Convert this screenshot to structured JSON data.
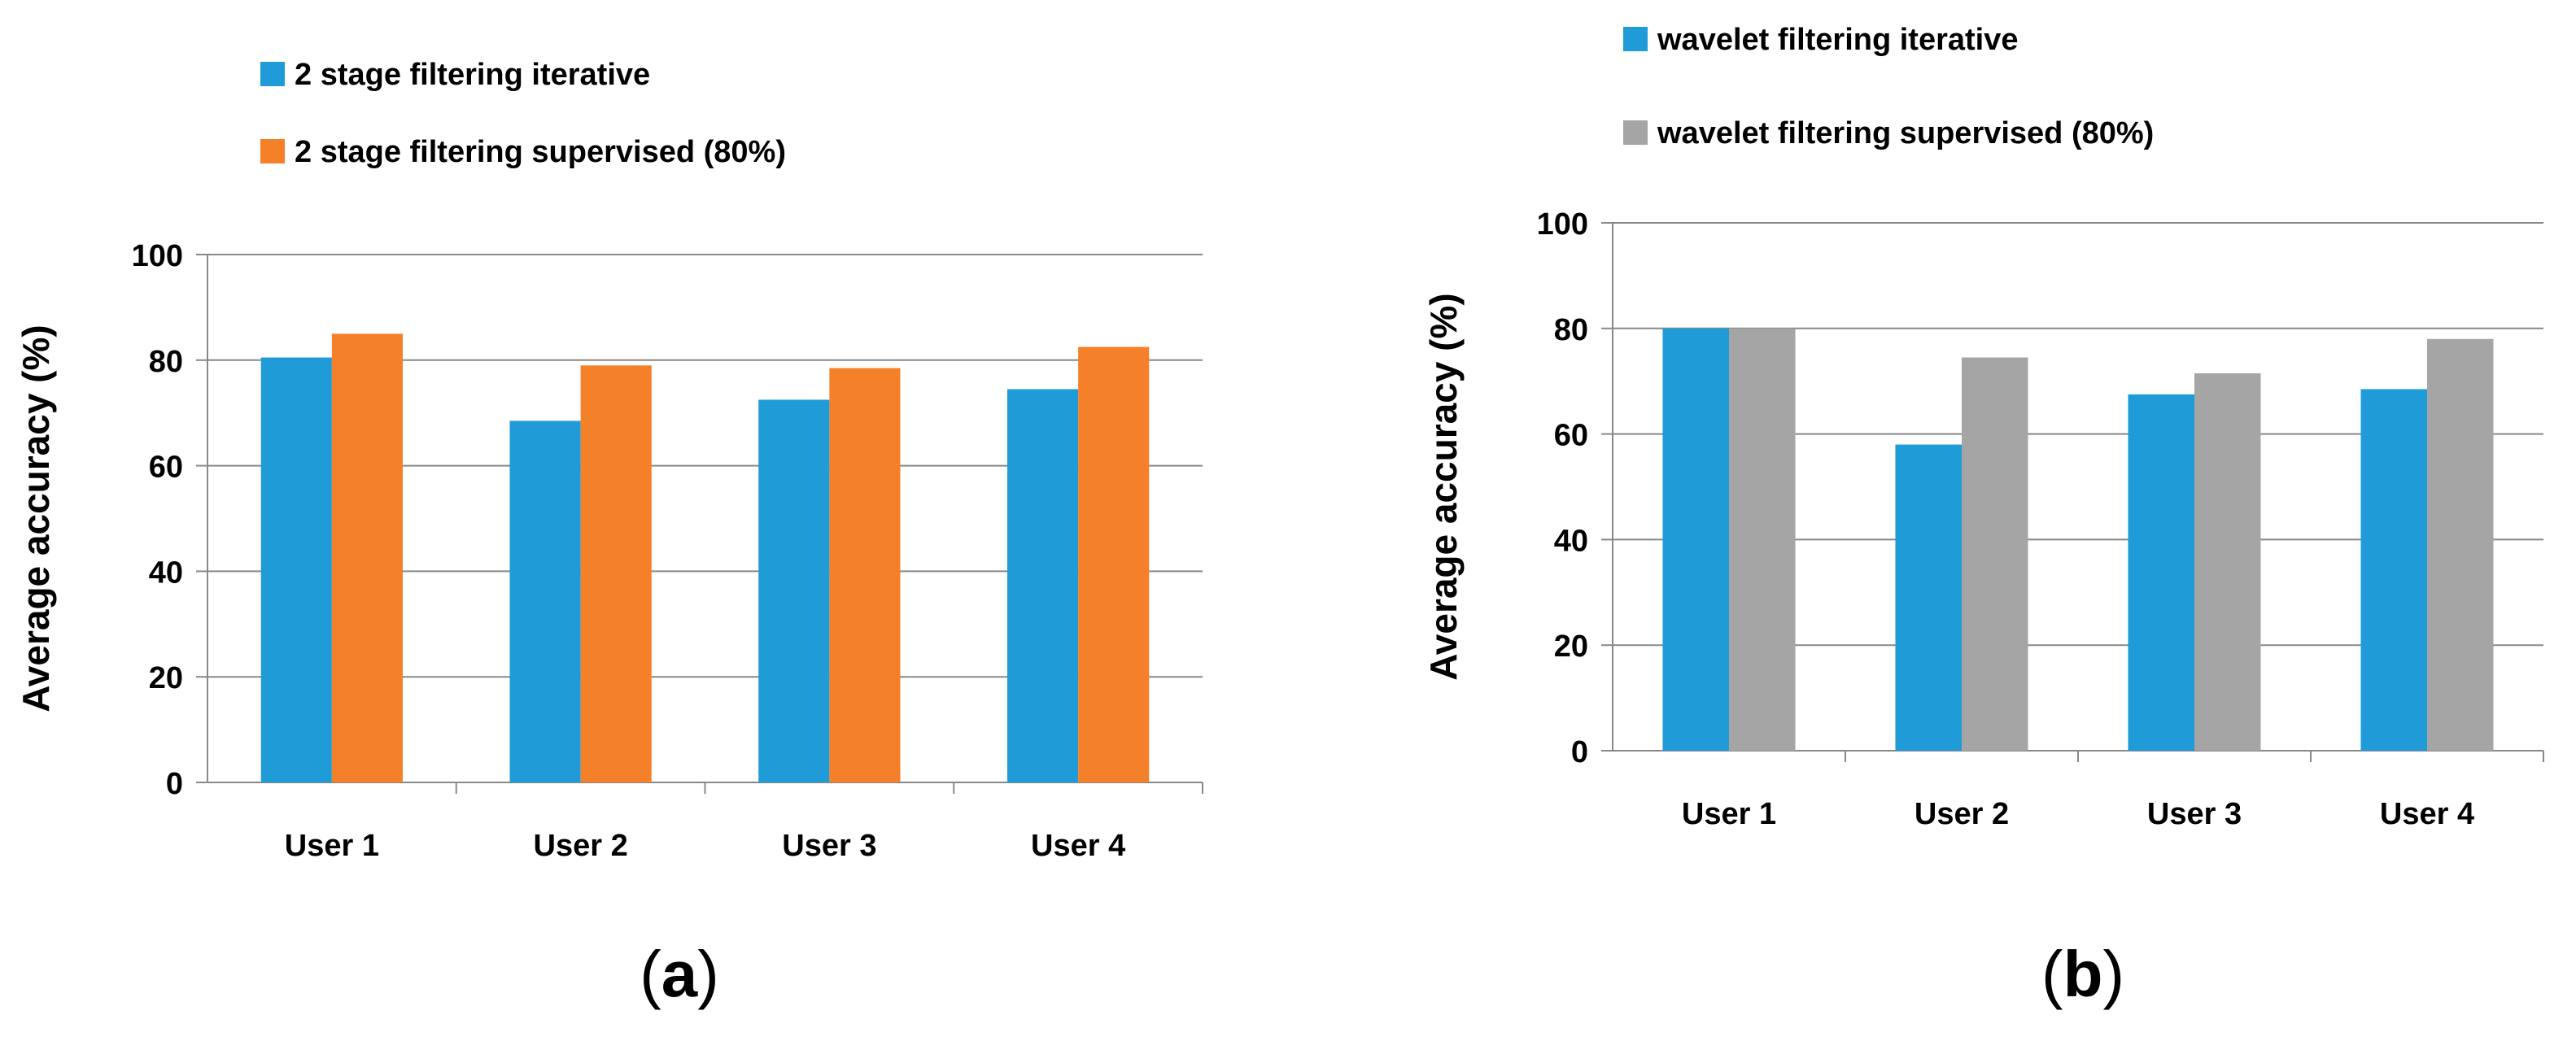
{
  "chart_data": [
    {
      "type": "bar",
      "panel_label": "(a)",
      "panel_letter": "a",
      "categories": [
        "User 1",
        "User 2",
        "User 3",
        "User 4"
      ],
      "series": [
        {
          "name": "2 stage filtering iterative",
          "color": "#1f9bd7",
          "values": [
            80.5,
            68.5,
            72.5,
            74.5
          ]
        },
        {
          "name": "2 stage filtering supervised (80%)",
          "color": "#f5802a",
          "values": [
            85,
            79,
            78.5,
            82.5
          ]
        }
      ],
      "title": "",
      "xlabel": "",
      "ylabel": "Average accuracy (%)",
      "ylim": [
        0,
        100
      ],
      "yticks": [
        0,
        20,
        40,
        60,
        80,
        100
      ],
      "grid": true,
      "legend": "top-left"
    },
    {
      "type": "bar",
      "panel_label": "(b)",
      "panel_letter": "b",
      "categories": [
        "User 1",
        "User 2",
        "User 3",
        "User 4"
      ],
      "series": [
        {
          "name": "wavelet filtering iterative",
          "color": "#1f9bd7",
          "values": [
            80,
            58,
            67.5,
            68.5
          ]
        },
        {
          "name": "wavelet filtering supervised (80%)",
          "color": "#a5a5a5",
          "values": [
            80,
            74.5,
            71.5,
            78
          ]
        }
      ],
      "title": "",
      "xlabel": "",
      "ylabel": "Average accuracy (%)",
      "ylim": [
        0,
        100
      ],
      "yticks": [
        0,
        20,
        40,
        60,
        80,
        100
      ],
      "grid": true,
      "legend": "top-left"
    }
  ]
}
